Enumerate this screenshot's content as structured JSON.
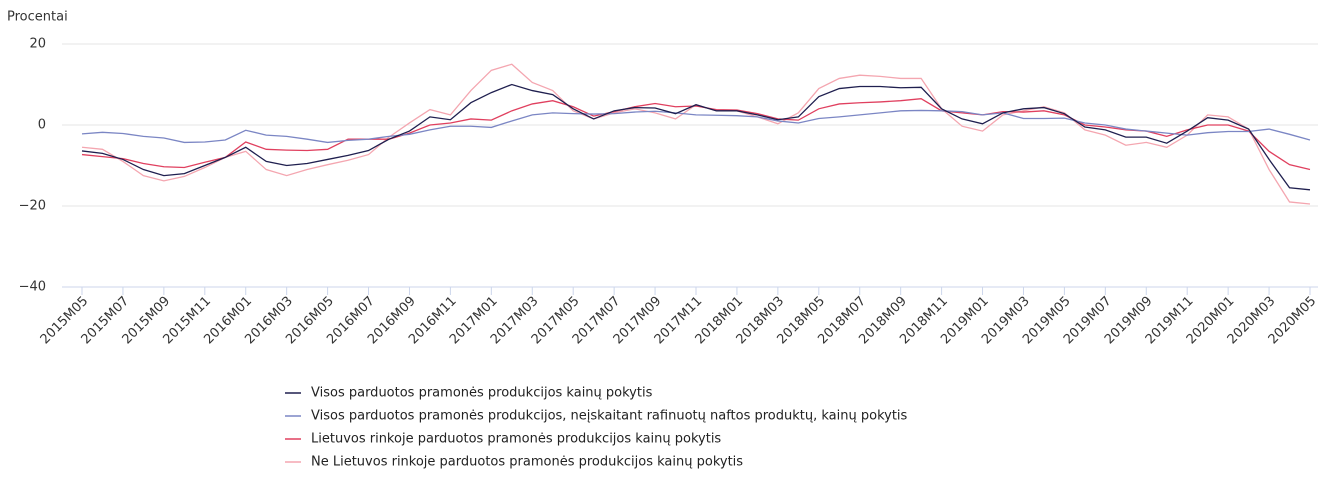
{
  "chart_data": {
    "type": "line",
    "y_label": "Procentai",
    "categories": [
      "2015M05",
      null,
      "2015M07",
      null,
      "2015M09",
      null,
      "2015M11",
      null,
      "2016M01",
      null,
      "2016M03",
      null,
      "2016M05",
      null,
      "2016M07",
      null,
      "2016M09",
      null,
      "2016M11",
      null,
      "2017M01",
      null,
      "2017M03",
      null,
      "2017M05",
      null,
      "2017M07",
      null,
      "2017M09",
      null,
      "2017M11",
      null,
      "2018M01",
      null,
      "2018M03",
      null,
      "2018M05",
      null,
      "2018M07",
      null,
      "2018M09",
      null,
      "2018M11",
      null,
      "2019M01",
      null,
      "2019M03",
      null,
      "2019M05",
      null,
      "2019M07",
      null,
      "2019M09",
      null,
      "2019M11",
      null,
      "2020M01",
      null,
      "2020M03",
      null,
      "2020M05"
    ],
    "ylim": [
      -40,
      20
    ],
    "yticks": [
      {
        "value": -40,
        "label": "−40"
      },
      {
        "value": -20,
        "label": "−20"
      },
      0,
      20
    ],
    "grid": true,
    "legend": "bottom",
    "series": [
      {
        "name": "Visos parduotos pramonės produkcijos kainų pokytis",
        "color": "#1f1f4f",
        "values": [
          -6.4,
          -7,
          -8.5,
          -11,
          -12.5,
          -12,
          -10,
          -8,
          -5.5,
          -9,
          -10,
          -9.5,
          -8.5,
          -7.5,
          -6.3,
          -3.5,
          -1.5,
          2,
          1.3,
          5.5,
          8,
          10,
          8.5,
          7.5,
          4,
          1.5,
          3.5,
          4.3,
          4.2,
          2.8,
          5,
          3.5,
          3.5,
          2.5,
          1.3,
          2,
          7,
          9,
          9.5,
          9.5,
          9.2,
          9.3,
          4,
          1.5,
          0.3,
          3,
          4,
          4.3,
          2.8,
          -0.5,
          -1.2,
          -3,
          -3,
          -4.5,
          -1.5,
          1.8,
          1.2,
          -1,
          -8.5,
          -15.5,
          -16
        ]
      },
      {
        "name": "Visos parduotos pramonės produkcijos, neįskaitant rafinuotų naftos produktų, kainų pokytis",
        "color": "#7b86c4",
        "values": [
          -2.2,
          -1.8,
          -2.1,
          -2.8,
          -3.2,
          -4.3,
          -4.2,
          -3.7,
          -1.3,
          -2.5,
          -2.8,
          -3.5,
          -4.3,
          -3.8,
          -3.5,
          -2.8,
          -2.3,
          -1.2,
          -0.3,
          -0.3,
          -0.6,
          1,
          2.5,
          3,
          2.8,
          2.7,
          2.8,
          3.2,
          3.4,
          3,
          2.5,
          2.4,
          2.3,
          2,
          1,
          0.5,
          1.6,
          2,
          2.5,
          3,
          3.5,
          3.6,
          3.5,
          3.3,
          2.5,
          3,
          1.6,
          1.6,
          1.7,
          0.5,
          0,
          -1,
          -1.5,
          -2,
          -2.5,
          -1.9,
          -1.6,
          -1.6,
          -1,
          -2.3,
          -3.7
        ]
      },
      {
        "name": "Lietuvos rinkoje parduotos pramonės produkcijos kainų pokytis",
        "color": "#e0405f",
        "values": [
          -7.3,
          -7.8,
          -8.3,
          -9.5,
          -10.3,
          -10.5,
          -9.2,
          -8,
          -4.2,
          -6,
          -6.2,
          -6.3,
          -6,
          -3.5,
          -3.5,
          -3.5,
          -2,
          0,
          0.5,
          1.5,
          1.2,
          3.5,
          5.2,
          6,
          4.5,
          2.2,
          3.3,
          4.5,
          5.3,
          4.5,
          4.7,
          3.8,
          3.7,
          2.8,
          1.5,
          1.2,
          4,
          5.2,
          5.5,
          5.7,
          6,
          6.5,
          3.5,
          3,
          2.5,
          3.3,
          3.2,
          3.5,
          2.5,
          0,
          -0.5,
          -1.2,
          -1.5,
          -2.8,
          -1.2,
          0,
          0,
          -1.5,
          -6.5,
          -9.8,
          -11
        ]
      },
      {
        "name": "Ne Lietuvos rinkoje parduotos pramonės produkcijos kainų pokytis",
        "color": "#f4a6b0",
        "values": [
          -5.5,
          -6,
          -9,
          -12.5,
          -13.8,
          -12.7,
          -10.5,
          -8,
          -6.5,
          -11,
          -12.5,
          -11,
          -9.8,
          -8.7,
          -7.3,
          -3,
          0.5,
          3.8,
          2.5,
          8.5,
          13.5,
          15,
          10.5,
          8.5,
          3.5,
          1.5,
          3,
          4,
          3,
          1.5,
          5,
          3.5,
          3.5,
          2,
          0.3,
          3,
          9,
          11.5,
          12.3,
          12,
          11.5,
          11.5,
          4,
          -0.3,
          -1.5,
          2.5,
          3.5,
          4.5,
          3,
          -1.2,
          -2.5,
          -5,
          -4.3,
          -5.5,
          -2.5,
          2.5,
          2,
          -1,
          -11,
          -19,
          -19.5
        ]
      }
    ]
  }
}
